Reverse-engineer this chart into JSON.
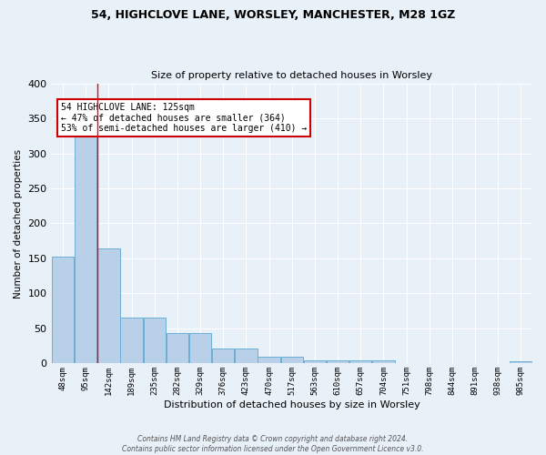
{
  "title1": "54, HIGHCLOVE LANE, WORSLEY, MANCHESTER, M28 1GZ",
  "title2": "Size of property relative to detached houses in Worsley",
  "xlabel": "Distribution of detached houses by size in Worsley",
  "ylabel": "Number of detached properties",
  "categories": [
    "48sqm",
    "95sqm",
    "142sqm",
    "189sqm",
    "235sqm",
    "282sqm",
    "329sqm",
    "376sqm",
    "423sqm",
    "470sqm",
    "517sqm",
    "563sqm",
    "610sqm",
    "657sqm",
    "704sqm",
    "751sqm",
    "798sqm",
    "844sqm",
    "891sqm",
    "938sqm",
    "985sqm"
  ],
  "values": [
    152,
    325,
    164,
    65,
    65,
    44,
    44,
    21,
    21,
    9,
    9,
    4,
    4,
    5,
    5,
    0,
    0,
    0,
    0,
    0,
    3
  ],
  "bar_color": "#b8d0e8",
  "bar_edge_color": "#6aaed6",
  "bg_color": "#e8f0f8",
  "grid_color": "#ffffff",
  "red_line_x": 1.5,
  "annotation_text": "54 HIGHCLOVE LANE: 125sqm\n← 47% of detached houses are smaller (364)\n53% of semi-detached houses are larger (410) →",
  "annotation_box_color": "#ffffff",
  "annotation_box_edge": "#cc0000",
  "footer": "Contains HM Land Registry data © Crown copyright and database right 2024.\nContains public sector information licensed under the Open Government Licence v3.0.",
  "ylim": [
    0,
    400
  ],
  "yticks": [
    0,
    50,
    100,
    150,
    200,
    250,
    300,
    350,
    400
  ]
}
